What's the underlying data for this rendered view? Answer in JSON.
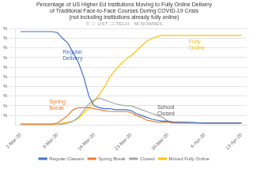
{
  "chart_data": {
    "type": "line",
    "title": "Percentage of US Higher Ed Institutions Moving to Fully Online Delivery\nof Traditional Face-to-Face Courses During COVID-19 Crisis\n(not including institutions already fully online)",
    "subtitle": "©  □  LIST  □□TECH    M□NOWRES",
    "x": [
      0,
      1,
      2,
      3,
      4,
      5,
      6,
      7,
      8,
      9,
      10,
      11,
      12,
      13,
      14,
      15,
      16,
      17,
      18,
      19,
      20,
      21,
      22,
      23,
      24,
      25,
      26,
      27,
      28,
      29,
      30,
      35,
      42
    ],
    "series": [
      {
        "name": "Regular Classes",
        "color": "#4472C4",
        "values": [
          97,
          97,
          97,
          97,
          97,
          97,
          97,
          96,
          90,
          85,
          75,
          65,
          50,
          30,
          20,
          18,
          17,
          17,
          16,
          16,
          16,
          15,
          12,
          10,
          8,
          6,
          5,
          4,
          4,
          3,
          3,
          2,
          2
        ]
      },
      {
        "name": "Spring Break",
        "color": "#ED7D31",
        "values": [
          1,
          1,
          1,
          1,
          1,
          1,
          1,
          2,
          6,
          10,
          16,
          18,
          18,
          18,
          17,
          16,
          15,
          14,
          14,
          14,
          14,
          13,
          10,
          8,
          5,
          4,
          3,
          3,
          3,
          2,
          2,
          2,
          2
        ]
      },
      {
        "name": "Closed",
        "color": "#A5A5A5",
        "values": [
          0,
          0,
          0,
          0,
          0,
          0,
          0,
          0,
          1,
          2,
          4,
          8,
          15,
          22,
          26,
          28,
          26,
          24,
          22,
          21,
          20,
          20,
          18,
          16,
          14,
          12,
          10,
          8,
          4,
          3,
          3,
          2,
          2
        ]
      },
      {
        "name": "Moved Fully Online",
        "color": "#FFC000",
        "values": [
          1,
          1,
          1,
          1,
          1,
          1,
          1,
          1,
          2,
          3,
          4,
          7,
          12,
          18,
          25,
          32,
          40,
          50,
          57,
          63,
          68,
          72,
          77,
          82,
          87,
          90,
          92,
          93,
          93,
          93,
          93,
          93,
          93
        ]
      }
    ],
    "xlim": [
      -1,
      43
    ],
    "xticks": [
      {
        "value": 0,
        "label": "2-Mar-20"
      },
      {
        "value": 7,
        "label": "9-Mar-20"
      },
      {
        "value": 14,
        "label": "16-Mar-20"
      },
      {
        "value": 21,
        "label": "23-Mar-20"
      },
      {
        "value": 28,
        "label": "30-Mar-20"
      },
      {
        "value": 35,
        "label": "6-Apr-20"
      },
      {
        "value": 42,
        "label": "13-Apr-20"
      }
    ],
    "ylim": [
      0,
      100
    ],
    "yticks": [
      {
        "value": 10,
        "label": "%"
      },
      {
        "value": 20,
        "label": "%"
      },
      {
        "value": 30,
        "label": "%"
      },
      {
        "value": 40,
        "label": "%"
      },
      {
        "value": 50,
        "label": "%"
      },
      {
        "value": 60,
        "label": "%"
      },
      {
        "value": 70,
        "label": "%"
      },
      {
        "value": 80,
        "label": "%"
      },
      {
        "value": 90,
        "label": "%"
      },
      {
        "value": 100,
        "label": "%"
      }
    ],
    "grid": true,
    "legend": "bottom",
    "annotations": [
      {
        "text": "Regular\nDelivery",
        "x": 8,
        "y": 72,
        "color": "#4472C4"
      },
      {
        "text": "Spring\nBreak",
        "x": 5.5,
        "y": 21,
        "color": "#ED7D31"
      },
      {
        "text": "Fully\nOnline",
        "x": 32,
        "y": 83,
        "color": "#FFC000"
      },
      {
        "text": "School\nClosed",
        "x": 26,
        "y": 15,
        "color": "#555555"
      }
    ]
  }
}
